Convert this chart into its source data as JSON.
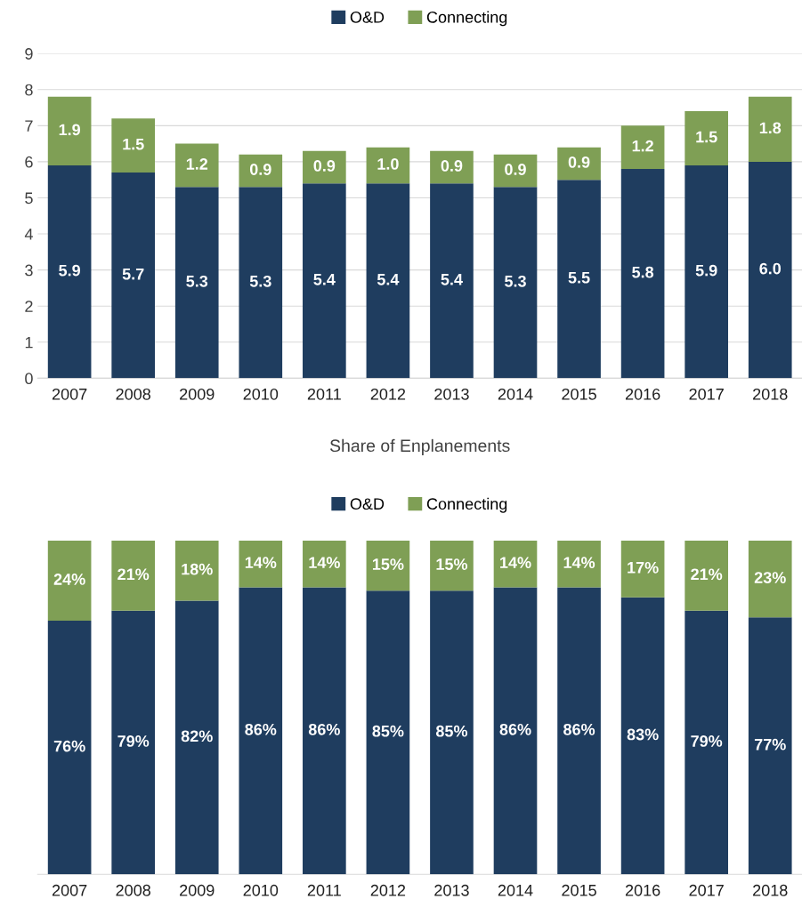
{
  "chart_data": [
    {
      "type": "bar",
      "stacked": true,
      "categories": [
        "2007",
        "2008",
        "2009",
        "2010",
        "2011",
        "2012",
        "2013",
        "2014",
        "2015",
        "2016",
        "2017",
        "2018"
      ],
      "series": [
        {
          "name": "O&D",
          "color": "#1f3d5f",
          "values": [
            5.9,
            5.7,
            5.3,
            5.3,
            5.4,
            5.4,
            5.4,
            5.3,
            5.5,
            5.8,
            5.9,
            6.0
          ],
          "value_labels": [
            "5.9",
            "5.7",
            "5.3",
            "5.3",
            "5.4",
            "5.4",
            "5.4",
            "5.3",
            "5.5",
            "5.8",
            "5.9",
            "6.0"
          ]
        },
        {
          "name": "Connecting",
          "color": "#7f9f55",
          "values": [
            1.9,
            1.5,
            1.2,
            0.9,
            0.9,
            1.0,
            0.9,
            0.9,
            0.9,
            1.2,
            1.5,
            1.8
          ],
          "value_labels": [
            "1.9",
            "1.5",
            "1.2",
            "0.9",
            "0.9",
            "1.0",
            "0.9",
            "0.9",
            "0.9",
            "1.2",
            "1.5",
            "1.8"
          ]
        }
      ],
      "ylim": [
        0,
        9
      ],
      "yticks": [
        0,
        1,
        2,
        3,
        4,
        5,
        6,
        7,
        8,
        9
      ],
      "grid": "y",
      "legend": "top"
    },
    {
      "type": "bar",
      "stacked": true,
      "title": "Share of Enplanements",
      "categories": [
        "2007",
        "2008",
        "2009",
        "2010",
        "2011",
        "2012",
        "2013",
        "2014",
        "2015",
        "2016",
        "2017",
        "2018"
      ],
      "series": [
        {
          "name": "O&D",
          "color": "#1f3d5f",
          "values": [
            76,
            79,
            82,
            86,
            86,
            85,
            85,
            86,
            86,
            83,
            79,
            77
          ],
          "value_labels": [
            "76%",
            "79%",
            "82%",
            "86%",
            "86%",
            "85%",
            "85%",
            "86%",
            "86%",
            "83%",
            "79%",
            "77%"
          ]
        },
        {
          "name": "Connecting",
          "color": "#7f9f55",
          "values": [
            24,
            21,
            18,
            14,
            14,
            15,
            15,
            14,
            14,
            17,
            21,
            23
          ],
          "value_labels": [
            "24%",
            "21%",
            "18%",
            "14%",
            "14%",
            "15%",
            "15%",
            "14%",
            "14%",
            "17%",
            "21%",
            "23%"
          ]
        }
      ],
      "tick_labels": "x",
      "legend": "top"
    }
  ]
}
